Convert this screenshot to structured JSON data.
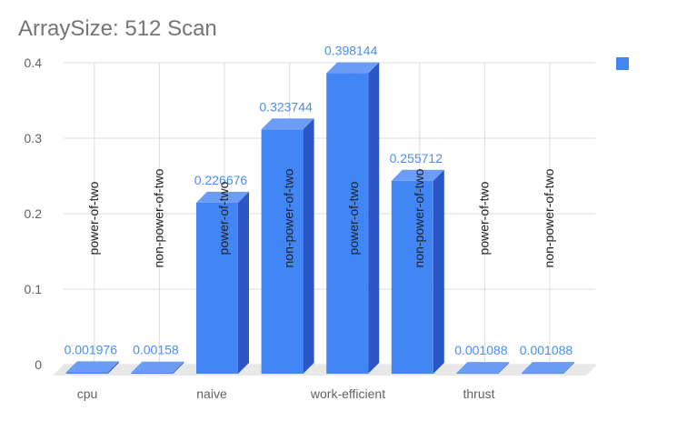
{
  "chart_data": {
    "type": "bar",
    "title": "ArraySize: 512 Scan",
    "categories": [
      {
        "group": "cpu",
        "label": "power-of-two"
      },
      {
        "group": "cpu",
        "label": "non-power-of-two"
      },
      {
        "group": "naive",
        "label": "power-of-two"
      },
      {
        "group": "naive",
        "label": "non-power-of-two"
      },
      {
        "group": "work-efficient",
        "label": "power-of-two"
      },
      {
        "group": "work-efficient",
        "label": "non-power-of-two"
      },
      {
        "group": "thrust",
        "label": "power-of-two"
      },
      {
        "group": "thrust",
        "label": "non-power-of-two"
      }
    ],
    "groups": [
      "cpu",
      "naive",
      "work-efficient",
      "thrust"
    ],
    "values": [
      0.001976,
      0.00158,
      0.226676,
      0.323744,
      0.398144,
      0.255712,
      0.001088,
      0.001088
    ],
    "value_labels": [
      "0.001976",
      "0.00158",
      "0.226676",
      "0.323744",
      "0.398144",
      "0.255712",
      "0.001088",
      "0.001088"
    ],
    "yticks": [
      "0",
      "0.1",
      "0.2",
      "0.3",
      "0.4"
    ],
    "ylim": [
      0,
      0.4
    ],
    "grid": true,
    "style": "3d-bar",
    "legend": {
      "position": "top-right",
      "entries": [
        ""
      ]
    },
    "colors": {
      "bar_front": "#4285f4",
      "bar_side": "#2a56c6",
      "bar_top": "#6b9df7",
      "value_label": "#4a8ef0",
      "floor": "#e8e8e8",
      "grid": "#dddddd",
      "axis_text": "#616161"
    }
  }
}
